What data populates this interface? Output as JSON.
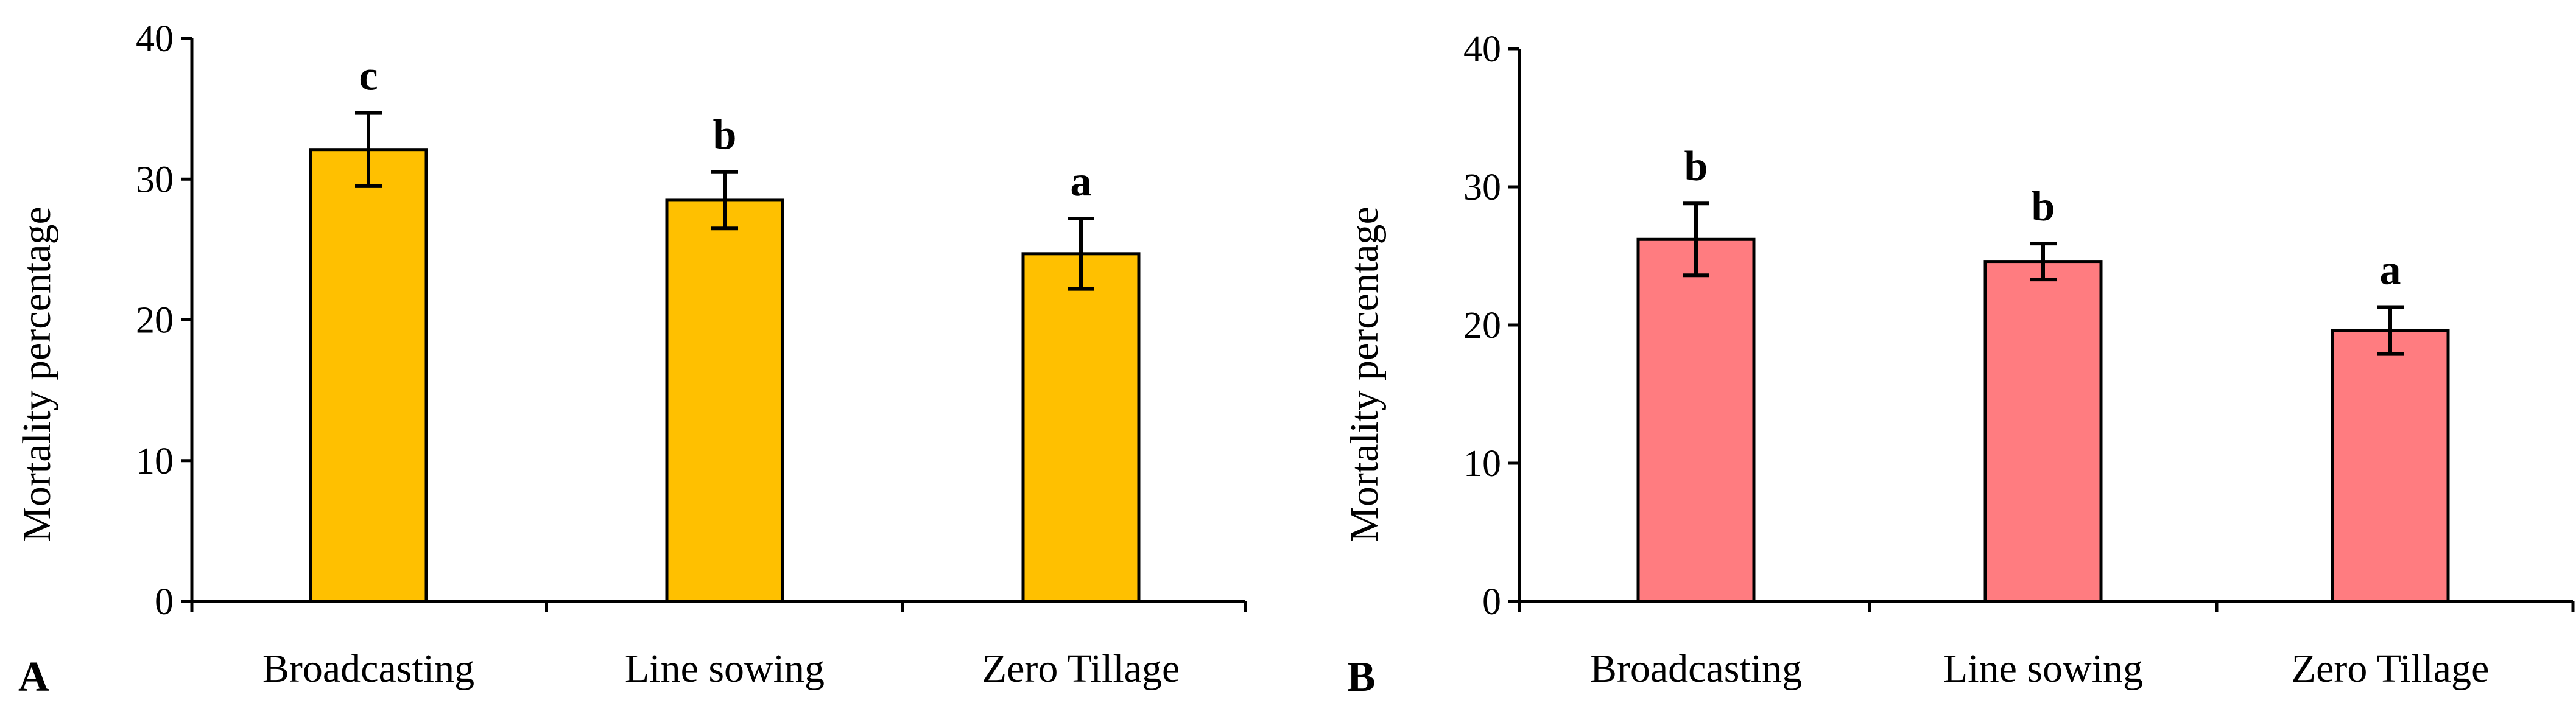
{
  "chart_data": [
    {
      "panel_label": "A",
      "type": "bar",
      "ylabel": "Mortality percentage",
      "xlabel": "",
      "ylim": [
        0,
        40
      ],
      "yticks": [
        0,
        10,
        20,
        30,
        40
      ],
      "categories": [
        "Broadcasting",
        "Line sowing",
        "Zero Tillage"
      ],
      "values": [
        32.1,
        28.5,
        24.7
      ],
      "errors": [
        2.6,
        2.0,
        2.5
      ],
      "significance": [
        "c",
        "b",
        "a"
      ],
      "bar_color": "#FFC000"
    },
    {
      "panel_label": "B",
      "type": "bar",
      "ylabel": "Mortality percentage",
      "xlabel": "",
      "ylim": [
        0,
        40
      ],
      "yticks": [
        0,
        10,
        20,
        30,
        40
      ],
      "categories": [
        "Broadcasting",
        "Line sowing",
        "Zero Tillage"
      ],
      "values": [
        26.2,
        24.6,
        19.6
      ],
      "errors": [
        2.6,
        1.3,
        1.7
      ],
      "significance": [
        "b",
        "b",
        "a"
      ],
      "bar_color": "#FF7C80"
    }
  ]
}
